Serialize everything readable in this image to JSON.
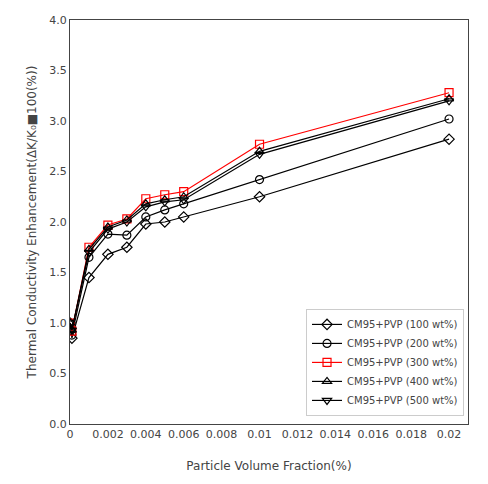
{
  "chart_data": {
    "type": "line",
    "xlabel": "Particle Volume Fraction(%)",
    "ylabel": "Thermal Conductivity Enhancement(ΔK/K₀■100(%))",
    "xlim": [
      0,
      0.021
    ],
    "ylim": [
      0,
      4.0
    ],
    "xticks": [
      0,
      0.002,
      0.004,
      0.006,
      0.008,
      0.01,
      0.012,
      0.014,
      0.016,
      0.018,
      0.02
    ],
    "yticks": [
      {
        "value": 0,
        "label": "0.0"
      },
      0.5,
      {
        "value": 1.0,
        "label": "1.0"
      },
      1.5,
      {
        "value": 2.0,
        "label": "2.0"
      },
      2.5,
      {
        "value": 3.0,
        "label": "3.0"
      },
      3.5,
      {
        "value": 4.0,
        "label": "4.0"
      }
    ],
    "grid": false,
    "legend": "lower right",
    "x": [
      0,
      0.0001,
      0.001,
      0.002,
      0.003,
      0.004,
      0.005,
      0.006,
      0.01,
      0.02
    ],
    "series": [
      {
        "name": "CM95+PVP (100 wt%)",
        "color": "black",
        "marker": "diamond",
        "values": [
          1.0,
          0.85,
          1.45,
          1.68,
          1.75,
          1.98,
          2.0,
          2.05,
          2.25,
          2.82
        ]
      },
      {
        "name": "CM95+PVP (200 wt%)",
        "color": "black",
        "marker": "circle",
        "values": [
          1.0,
          0.88,
          1.65,
          1.88,
          1.87,
          2.05,
          2.12,
          2.18,
          2.42,
          3.02
        ]
      },
      {
        "name": "CM95+PVP (300 wt%)",
        "color": "red",
        "marker": "square",
        "values": [
          1.0,
          0.92,
          1.75,
          1.97,
          2.03,
          2.23,
          2.27,
          2.3,
          2.77,
          3.28
        ]
      },
      {
        "name": "CM95+PVP (400 wt%)",
        "color": "black",
        "marker": "triangle-up",
        "values": [
          1.0,
          0.93,
          1.73,
          1.95,
          2.02,
          2.18,
          2.22,
          2.25,
          2.7,
          3.22
        ]
      },
      {
        "name": "CM95+PVP (500 wt%)",
        "color": "black",
        "marker": "triangle-down",
        "values": [
          1.0,
          0.93,
          1.7,
          1.93,
          2.0,
          2.15,
          2.2,
          2.22,
          2.67,
          3.2
        ]
      }
    ]
  }
}
